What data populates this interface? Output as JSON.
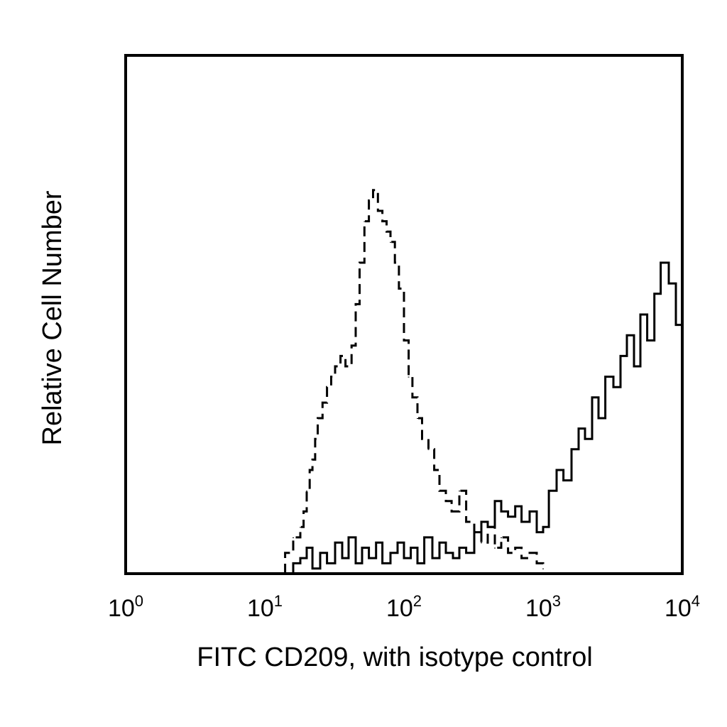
{
  "chart_data": {
    "type": "line",
    "title": "",
    "xlabel": "FITC CD209, with isotype control",
    "ylabel": "Relative Cell Number",
    "x_scale": "log",
    "xlim": [
      1,
      10000
    ],
    "ylim": [
      0,
      100
    ],
    "y_ticks_shown": false,
    "grid": false,
    "legend": "none",
    "x_ticks": [
      {
        "base": "10",
        "exp": "0",
        "value": 1
      },
      {
        "base": "10",
        "exp": "1",
        "value": 10
      },
      {
        "base": "10",
        "exp": "2",
        "value": 100
      },
      {
        "base": "10",
        "exp": "3",
        "value": 1000
      },
      {
        "base": "10",
        "exp": "4",
        "value": 10000
      }
    ],
    "series": [
      {
        "style": "dashed",
        "color": "#000000",
        "x": [
          14,
          16,
          18,
          19,
          20,
          21,
          22,
          23,
          24,
          26,
          28,
          30,
          32,
          35,
          38,
          42,
          45,
          48,
          52,
          56,
          60,
          65,
          70,
          75,
          80,
          86,
          92,
          100,
          108,
          115,
          125,
          135,
          150,
          165,
          180,
          200,
          220,
          250,
          280,
          320,
          360,
          400,
          450,
          500,
          560,
          630,
          700,
          800,
          900,
          1000
        ],
        "y": [
          4,
          7,
          9,
          12,
          16,
          20,
          22,
          26,
          30,
          33,
          36,
          38,
          40,
          42,
          40,
          44,
          52,
          60,
          68,
          72,
          74,
          70,
          68,
          66,
          64,
          60,
          55,
          45,
          38,
          34,
          30,
          26,
          24,
          20,
          16,
          14,
          12,
          16,
          10,
          8,
          6,
          9,
          5,
          7,
          4,
          5,
          3,
          4,
          2,
          1
        ]
      },
      {
        "style": "solid",
        "color": "#000000",
        "x": [
          14,
          16,
          18,
          20,
          22,
          25,
          28,
          32,
          36,
          40,
          45,
          50,
          56,
          63,
          70,
          80,
          90,
          100,
          112,
          125,
          140,
          160,
          180,
          200,
          225,
          250,
          280,
          320,
          360,
          400,
          450,
          500,
          560,
          630,
          700,
          800,
          900,
          1000,
          1100,
          1250,
          1400,
          1600,
          1800,
          2000,
          2250,
          2500,
          2800,
          3200,
          3600,
          4000,
          4500,
          5000,
          5600,
          6300,
          7000,
          8000,
          9000,
          10000
        ],
        "y": [
          0,
          2,
          3,
          5,
          1,
          4,
          2,
          6,
          3,
          7,
          2,
          5,
          3,
          6,
          2,
          4,
          6,
          3,
          5,
          2,
          7,
          3,
          6,
          4,
          3,
          5,
          4,
          8,
          10,
          9,
          14,
          12,
          11,
          13,
          10,
          12,
          8,
          9,
          16,
          20,
          18,
          24,
          28,
          26,
          34,
          30,
          38,
          36,
          42,
          46,
          40,
          50,
          45,
          54,
          60,
          56,
          48,
          70
        ]
      }
    ]
  }
}
